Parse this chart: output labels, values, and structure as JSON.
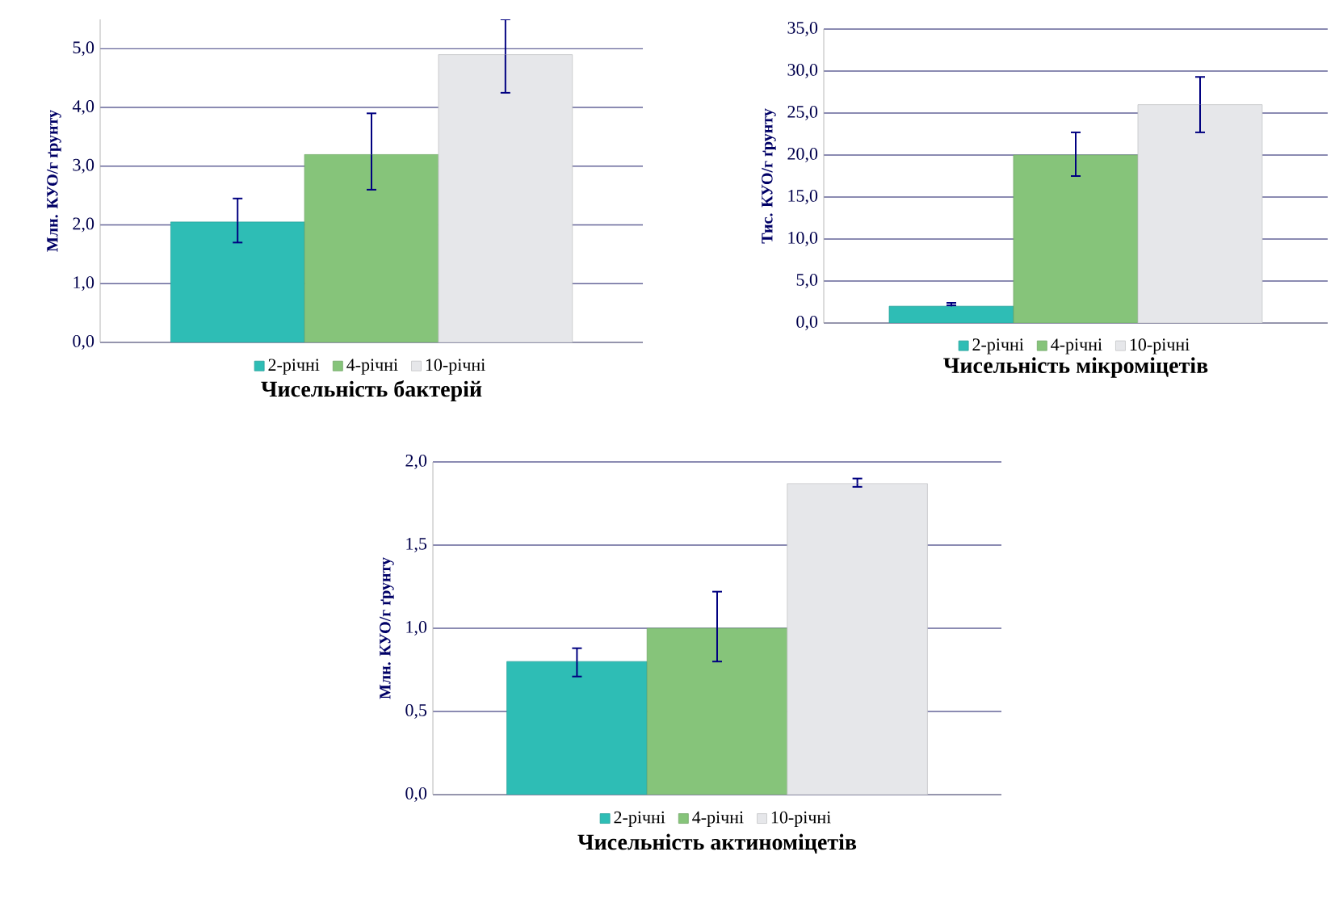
{
  "chart_data": [
    {
      "type": "bar",
      "title": "Чисельність бактерій",
      "ylabel": "Млн. КУО/г ґрунту",
      "categories": [
        null
      ],
      "series": [
        {
          "name": "2-річні",
          "color": "#2ebdb5",
          "values": [
            2.05
          ],
          "errors": [
            [
              1.7,
              2.45
            ]
          ]
        },
        {
          "name": "4-річні",
          "color": "#86c47a",
          "values": [
            3.2
          ],
          "errors": [
            [
              2.6,
              3.9
            ]
          ]
        },
        {
          "name": "10-річні",
          "color": "#e6e7ea",
          "values": [
            4.9
          ],
          "errors": [
            [
              4.25,
              5.5
            ]
          ]
        }
      ],
      "ylim": [
        0,
        5.5
      ],
      "yticks": [
        {
          "value": 0,
          "label": "0,0"
        },
        {
          "value": 1,
          "label": "1,0"
        },
        {
          "value": 2,
          "label": "2,0"
        },
        {
          "value": 3,
          "label": "3,0"
        },
        {
          "value": 4,
          "label": "4,0"
        },
        {
          "value": 5,
          "label": "5,0"
        }
      ],
      "grid": "y",
      "legend": "bottom"
    },
    {
      "type": "bar",
      "title": "Чисельність мікроміцетів",
      "ylabel": "Тис. КУО/г ґрунту",
      "categories": [
        null
      ],
      "series": [
        {
          "name": "2-річні",
          "color": "#2ebdb5",
          "values": [
            2.0
          ],
          "errors": [
            [
              2.1,
              2.4
            ]
          ]
        },
        {
          "name": "4-річні",
          "color": "#86c47a",
          "values": [
            20.0
          ],
          "errors": [
            [
              17.5,
              22.7
            ]
          ]
        },
        {
          "name": "10-річні",
          "color": "#e6e7ea",
          "values": [
            26.0
          ],
          "errors": [
            [
              22.7,
              29.3
            ]
          ]
        }
      ],
      "ylim": [
        0,
        35
      ],
      "yticks": [
        {
          "value": 0,
          "label": "0,0"
        },
        {
          "value": 5,
          "label": "5,0"
        },
        {
          "value": 10,
          "label": "10,0"
        },
        {
          "value": 15,
          "label": "15,0"
        },
        {
          "value": 20,
          "label": "20,0"
        },
        {
          "value": 25,
          "label": "25,0"
        },
        {
          "value": 30,
          "label": "30,0"
        },
        {
          "value": 35,
          "label": "35,0"
        }
      ],
      "grid": "y",
      "legend": "bottom"
    },
    {
      "type": "bar",
      "title": "Чисельність актиноміцетів",
      "ylabel": "Млн. КУО/г ґрунту",
      "categories": [
        null
      ],
      "series": [
        {
          "name": "2-річні",
          "color": "#2ebdb5",
          "values": [
            0.8
          ],
          "errors": [
            [
              0.71,
              0.88
            ]
          ]
        },
        {
          "name": "4-річні",
          "color": "#86c47a",
          "values": [
            1.0
          ],
          "errors": [
            [
              0.8,
              1.22
            ]
          ]
        },
        {
          "name": "10-річні",
          "color": "#e6e7ea",
          "values": [
            1.87
          ],
          "errors": [
            [
              1.85,
              1.9
            ]
          ]
        }
      ],
      "ylim": [
        0,
        2
      ],
      "yticks": [
        {
          "value": 0,
          "label": "0,0"
        },
        {
          "value": 0.5,
          "label": "0,5"
        },
        {
          "value": 1,
          "label": "1,0"
        },
        {
          "value": 1.5,
          "label": "1,5"
        },
        {
          "value": 2,
          "label": "2,0"
        }
      ],
      "grid": "y",
      "legend": "bottom"
    }
  ]
}
